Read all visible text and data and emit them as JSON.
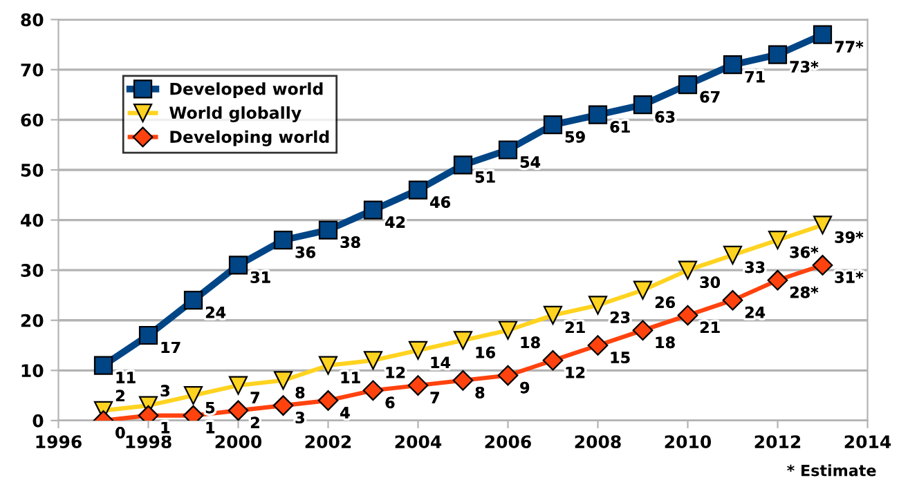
{
  "chart_data": {
    "type": "line",
    "x": [
      1997,
      1998,
      1999,
      2000,
      2001,
      2002,
      2003,
      2004,
      2005,
      2006,
      2007,
      2008,
      2009,
      2010,
      2011,
      2012,
      2013
    ],
    "series": [
      {
        "name": "Developed world",
        "color": "#004586",
        "marker": "square",
        "values": [
          11,
          17,
          24,
          31,
          36,
          38,
          42,
          46,
          51,
          54,
          59,
          61,
          63,
          67,
          71,
          73,
          77
        ],
        "value_labels": [
          "11",
          "17",
          "24",
          "31",
          "36",
          "38",
          "42",
          "46",
          "51",
          "54",
          "59",
          "61",
          "63",
          "67",
          "71",
          "73*",
          "77*"
        ]
      },
      {
        "name": "World globally",
        "color": "#ffd320",
        "marker": "triangle",
        "values": [
          2,
          3,
          5,
          7,
          8,
          11,
          12,
          14,
          16,
          18,
          21,
          23,
          26,
          30,
          33,
          36,
          39
        ],
        "value_labels": [
          "2",
          "3",
          "5",
          "7",
          "8",
          "11",
          "12",
          "14",
          "16",
          "18",
          "21",
          "23",
          "26",
          "30",
          "33",
          "36*",
          "39*"
        ]
      },
      {
        "name": "Developing world",
        "color": "#ff420e",
        "marker": "diamond",
        "values": [
          0,
          1,
          1,
          2,
          3,
          4,
          6,
          7,
          8,
          9,
          12,
          15,
          18,
          21,
          24,
          28,
          31
        ],
        "value_labels": [
          "0",
          "1",
          "1",
          "2",
          "3",
          "4",
          "6",
          "7",
          "8",
          "9",
          "12",
          "15",
          "18",
          "21",
          "24",
          "28*",
          "31*"
        ]
      }
    ],
    "xlim": [
      1996,
      2014
    ],
    "xticks": [
      1996,
      1998,
      2000,
      2002,
      2004,
      2006,
      2008,
      2010,
      2012,
      2014
    ],
    "ylim": [
      0,
      80
    ],
    "yticks": [
      0,
      10,
      20,
      30,
      40,
      50,
      60,
      70,
      80
    ],
    "grid": "y",
    "legend": "top left",
    "line_style": "solid",
    "annotations": [
      "* Estimate"
    ]
  }
}
